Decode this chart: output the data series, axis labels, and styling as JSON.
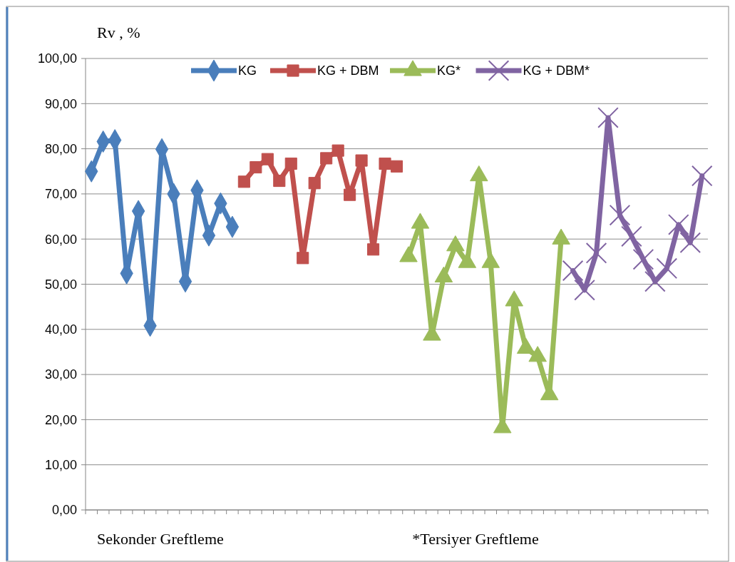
{
  "chart_data": {
    "type": "line",
    "ylabel": "Rv , %",
    "categories": [
      null,
      null,
      null,
      null,
      null,
      null,
      null,
      null,
      null,
      null,
      null,
      null,
      null,
      null,
      null,
      null,
      null,
      null,
      null,
      null,
      null,
      null,
      null,
      null,
      null,
      null,
      null,
      null,
      null,
      null,
      null,
      null,
      null,
      null,
      null,
      null,
      null,
      null,
      null,
      null,
      null,
      null,
      null,
      null,
      null,
      null,
      null,
      null,
      null,
      null,
      null,
      null,
      null
    ],
    "ylim": [
      0,
      100
    ],
    "yticks": [
      {
        "value": 0,
        "label": "0,00"
      },
      {
        "value": 10,
        "label": "10,00"
      },
      {
        "value": 20,
        "label": "20,00"
      },
      {
        "value": 30,
        "label": "30,00"
      },
      {
        "value": 40,
        "label": "40,00"
      },
      {
        "value": 50,
        "label": "50,00"
      },
      {
        "value": 60,
        "label": "60,00"
      },
      {
        "value": 70,
        "label": "70,00"
      },
      {
        "value": 80,
        "label": "80,00"
      },
      {
        "value": 90,
        "label": "90,00"
      },
      {
        "value": 100,
        "label": "100,00"
      }
    ],
    "grid": "y",
    "legend": "top",
    "tick_labels": "y",
    "line_style": "solid",
    "annotations": [
      "Sekonder Greftleme",
      "*Tersiyer Greftleme"
    ],
    "series": [
      {
        "name": "KG",
        "color": "#4a7ebb",
        "marker": "diamond",
        "values": [
          75.0,
          81.6,
          81.9,
          52.4,
          66.2,
          40.8,
          79.9,
          70.0,
          50.6,
          70.8,
          60.8,
          67.9,
          62.7,
          null,
          null,
          null,
          null,
          null,
          null,
          null,
          null,
          null,
          null,
          null,
          null,
          null,
          null,
          null,
          null,
          null,
          null,
          null,
          null,
          null,
          null,
          null,
          null,
          null,
          null,
          null,
          null,
          null,
          null,
          null,
          null,
          null,
          null,
          null,
          null,
          null,
          null,
          null,
          null
        ]
      },
      {
        "name": "KG + DBM",
        "color": "#c0504d",
        "marker": "square",
        "values": [
          null,
          null,
          null,
          null,
          null,
          null,
          null,
          null,
          null,
          null,
          null,
          null,
          null,
          72.7,
          75.9,
          77.7,
          72.9,
          76.7,
          55.8,
          72.4,
          77.9,
          79.6,
          69.8,
          77.4,
          57.7,
          76.7,
          76.1,
          null,
          null,
          null,
          null,
          null,
          null,
          null,
          null,
          null,
          null,
          null,
          null,
          null,
          null,
          null,
          null,
          null,
          null,
          null,
          null,
          null,
          null,
          null,
          null,
          null,
          null
        ]
      },
      {
        "name": "KG*",
        "color": "#9bbb59",
        "marker": "triangle",
        "values": [
          null,
          null,
          null,
          null,
          null,
          null,
          null,
          null,
          null,
          null,
          null,
          null,
          null,
          null,
          null,
          null,
          null,
          null,
          null,
          null,
          null,
          null,
          null,
          null,
          null,
          null,
          null,
          56.1,
          63.5,
          38.7,
          51.6,
          58.5,
          54.8,
          74.0,
          54.8,
          18.2,
          46.3,
          35.8,
          34.0,
          25.5,
          60.0,
          null,
          null,
          null,
          null,
          null,
          null,
          null,
          null,
          null,
          null,
          null,
          null
        ]
      },
      {
        "name": "KG + DBM*",
        "color": "#8064a2",
        "marker": "cross",
        "values": [
          null,
          null,
          null,
          null,
          null,
          null,
          null,
          null,
          null,
          null,
          null,
          null,
          null,
          null,
          null,
          null,
          null,
          null,
          null,
          null,
          null,
          null,
          null,
          null,
          null,
          null,
          null,
          null,
          null,
          null,
          null,
          null,
          null,
          null,
          null,
          null,
          null,
          null,
          null,
          null,
          null,
          53.0,
          48.7,
          56.9,
          86.9,
          65.3,
          60.6,
          55.5,
          50.6,
          53.5,
          63.2,
          59.2,
          74.0
        ]
      }
    ]
  }
}
